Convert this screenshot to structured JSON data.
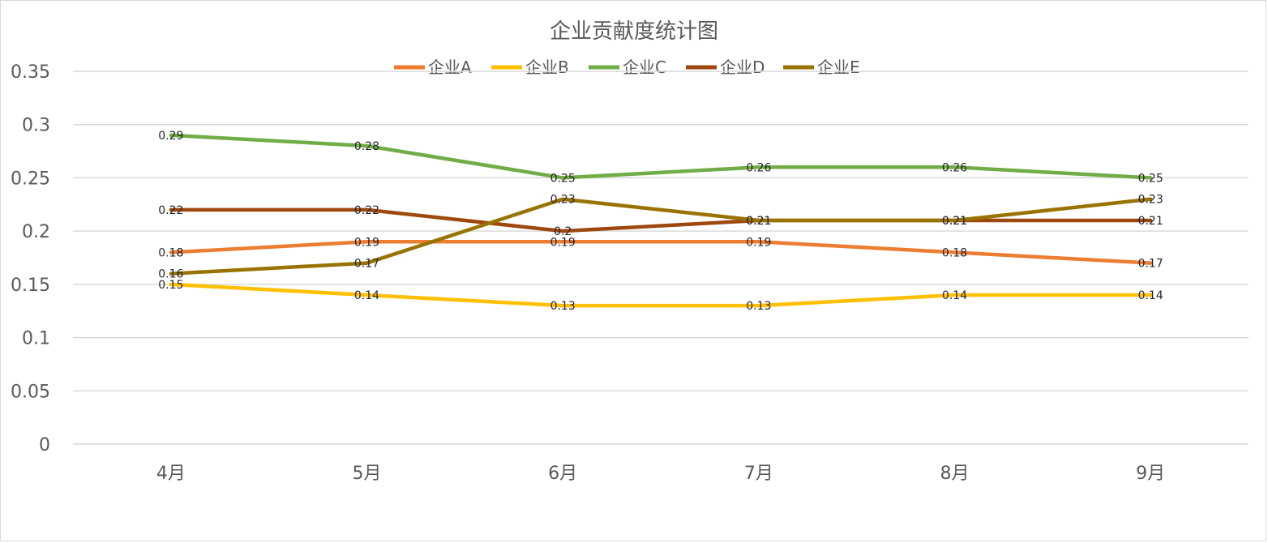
{
  "chart_data": {
    "type": "line",
    "title": "企业贡献度统计图",
    "categories": [
      "4月",
      "5月",
      "6月",
      "7月",
      "8月",
      "9月"
    ],
    "ylim": [
      0,
      0.35
    ],
    "yticks": [
      0,
      0.05,
      0.1,
      0.15,
      0.2,
      0.25,
      0.3,
      0.35
    ],
    "ytick_labels": [
      "0",
      "0.05",
      "0.1",
      "0.15",
      "0.2",
      "0.25",
      "0.3",
      "0.35"
    ],
    "grid": true,
    "legend_position": "top",
    "series": [
      {
        "name": "企业A",
        "color": "#ED7D31",
        "values": [
          0.18,
          0.19,
          0.19,
          0.19,
          0.18,
          0.17
        ],
        "labels": [
          "0.18",
          "0.19",
          "0.19",
          "0.19",
          "0.18",
          "0.17"
        ]
      },
      {
        "name": "企业B",
        "color": "#FFC000",
        "values": [
          0.15,
          0.14,
          0.13,
          0.13,
          0.14,
          0.14
        ],
        "labels": [
          "0.15",
          "0.14",
          "0.13",
          "0.13",
          "0.14",
          "0.14"
        ]
      },
      {
        "name": "企业C",
        "color": "#70AD47",
        "values": [
          0.29,
          0.28,
          0.25,
          0.26,
          0.26,
          0.25
        ],
        "labels": [
          "0.29",
          "0.28",
          "0.25",
          "0.26",
          "0.26",
          "0.25"
        ]
      },
      {
        "name": "企业D",
        "color": "#9E480E",
        "values": [
          0.22,
          0.22,
          0.2,
          0.21,
          0.21,
          0.21
        ],
        "labels": [
          "0.22",
          "0.22",
          "0.2",
          "0.21",
          "0.21",
          "0.21"
        ]
      },
      {
        "name": "企业E",
        "color": "#997300",
        "values": [
          0.16,
          0.17,
          0.23,
          0.21,
          0.21,
          0.23
        ],
        "labels": [
          "0.16",
          "0.17",
          "0.23",
          "0.21",
          "0.21",
          "0.23"
        ]
      }
    ]
  }
}
